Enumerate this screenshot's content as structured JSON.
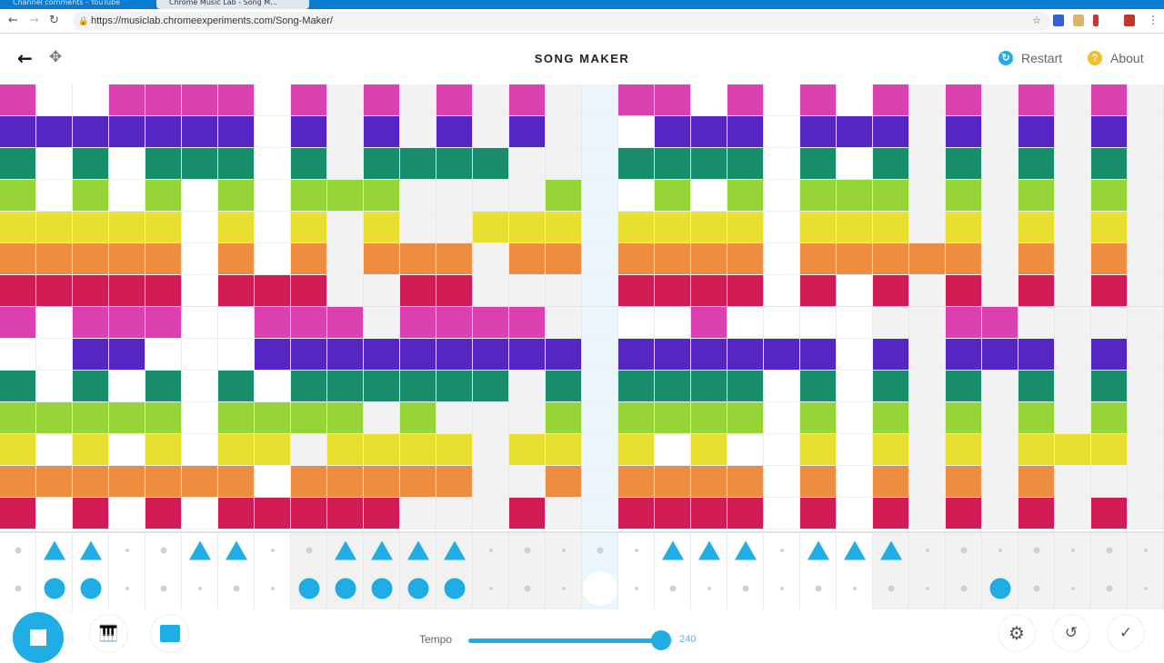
{
  "browser": {
    "tabs": [
      "Channel comments - YouTube",
      "Chrome Music Lab - Song M..."
    ],
    "url": "https://musiclab.chromeexperiments.com/Song-Maker/"
  },
  "header": {
    "title": "SONG MAKER",
    "restart_label": "Restart",
    "about_label": "About"
  },
  "colors": {
    "rows": [
      "#dc3fb0",
      "#5626c5",
      "#178d6b",
      "#96d536",
      "#e8df30",
      "#ed8d41",
      "#d11b55",
      "#dc3fb0",
      "#5626c5",
      "#178d6b",
      "#96d536",
      "#e8df30",
      "#ed8d41",
      "#d11b55"
    ],
    "accent": "#1fade6",
    "bar_gray": "#f2f2f2",
    "playhead": "#eaf5fc"
  },
  "melody_grid": [
    "10011110101010100110101010101010",
    "11111110101010100011101110101010",
    "10101110101111000111101010101010",
    "10101010111000010010101110101010",
    "11111010101001110111101110101010",
    "11111010101110110111101111101010",
    "11111011100110000111101010101010",
    "10111001110111100001000000110000",
    "00110001111111110111111010111010",
    "10101010111111010111101010101010",
    "11111011110100010111101010101010",
    "10101011011110110101001010101110",
    "11111110111110010111101010101000",
    "10101011111000100111101010101010"
  ],
  "percussion": {
    "triangles": "01100110011110000011101110000000",
    "circles": "01100000111110000000000000010000"
  },
  "playhead_column": 16,
  "footer": {
    "tempo_label": "Tempo",
    "tempo_value": "240",
    "tempo_fraction": 0.94
  }
}
